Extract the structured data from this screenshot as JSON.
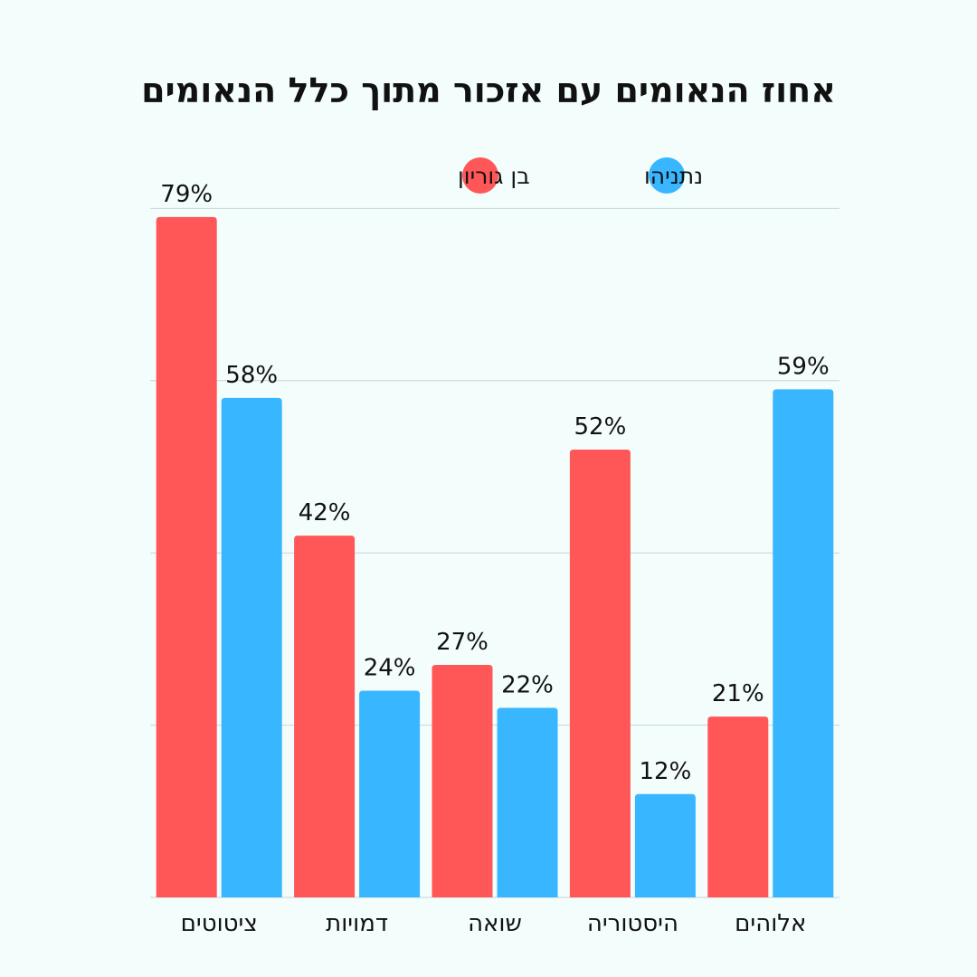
{
  "chart_data": {
    "type": "bar",
    "title": "אחוז הנאומים עם אזכור מתוך כלל הנאומים",
    "xlabel": "",
    "ylabel": "",
    "ylim": [
      0,
      80
    ],
    "grid": true,
    "legend_position": "top-right",
    "categories": [
      "אלוהים",
      "היסטוריה",
      "שואה",
      "דמויות",
      "ציטוטים"
    ],
    "series": [
      {
        "name": "נתניהו",
        "color": "#38b6ff",
        "values": [
          59,
          12,
          22,
          24,
          58
        ],
        "labels": [
          "59%",
          "12%",
          "22%",
          "24%",
          "58%"
        ]
      },
      {
        "name": "בן גוריון",
        "color": "#ff5757",
        "values": [
          21,
          52,
          27,
          42,
          79
        ],
        "labels": [
          "21%",
          "52%",
          "27%",
          "42%",
          "79%"
        ]
      }
    ]
  }
}
